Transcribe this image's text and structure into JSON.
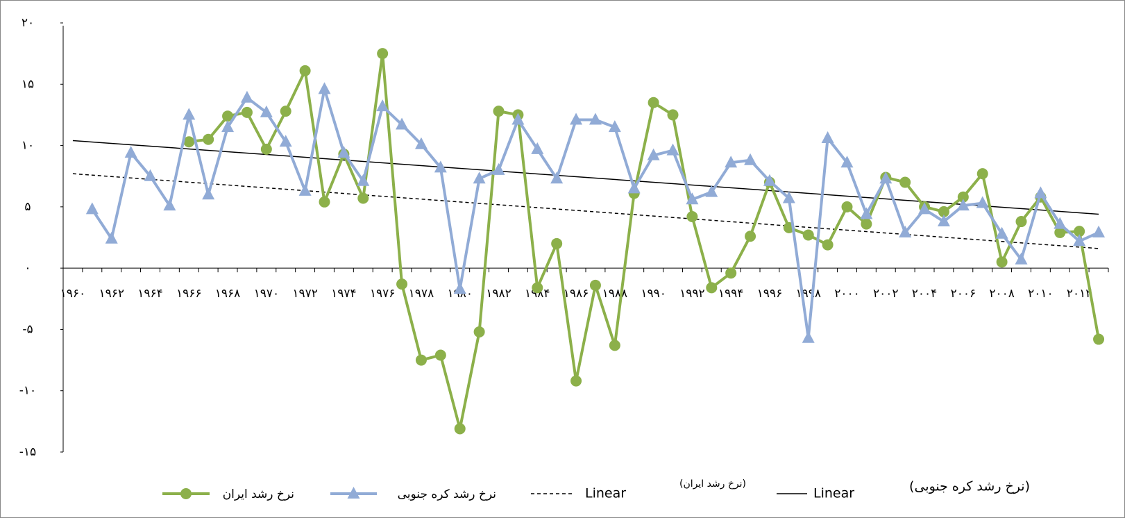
{
  "chart_data": {
    "type": "line",
    "categories": [
      "۱۹۶۰",
      null,
      "۱۹۶۲",
      null,
      "۱۹۶۴",
      null,
      "۱۹۶۶",
      null,
      "۱۹۶۸",
      null,
      "۱۹۷۰",
      null,
      "۱۹۷۲",
      null,
      "۱۹۷۴",
      null,
      "۱۹۷۶",
      null,
      "۱۹۷۸",
      null,
      "۱۹۸۰",
      null,
      "۱۹۸۲",
      null,
      "۱۹۸۴",
      null,
      "۱۹۸۶",
      null,
      "۱۹۸۸",
      null,
      "۱۹۹۰",
      null,
      "۱۹۹۲",
      null,
      "۱۹۹۴",
      null,
      "۱۹۹۶",
      null,
      "۱۹۹۸",
      null,
      "۲۰۰۰",
      null,
      "۲۰۰۲",
      null,
      "۲۰۰۴",
      null,
      "۲۰۰۶",
      null,
      "۲۰۰۸",
      null,
      "۲۰۱۰",
      null,
      "۲۰۱۲",
      null
    ],
    "series": [
      {
        "name": "نرخ رشد ایران",
        "color": "#8cb04a",
        "marker": "circle",
        "values": [
          null,
          null,
          null,
          null,
          null,
          null,
          10.3,
          10.5,
          12.4,
          12.7,
          9.7,
          12.8,
          16.1,
          5.4,
          9.3,
          5.7,
          17.5,
          -1.3,
          -7.5,
          -7.1,
          -13.1,
          -5.2,
          12.8,
          12.5,
          -1.6,
          2.0,
          -9.2,
          -1.4,
          -6.3,
          6.1,
          13.5,
          12.5,
          4.2,
          -1.6,
          -0.4,
          2.6,
          7.0,
          3.3,
          2.7,
          1.9,
          5.0,
          3.6,
          7.4,
          7.0,
          5.0,
          4.6,
          5.8,
          7.7,
          0.5,
          3.8,
          5.8,
          2.9,
          3.0,
          -5.8
        ]
      },
      {
        "name": "نرخ رشد کره جنوبی",
        "color": "#91abd6",
        "marker": "triangle",
        "values": [
          null,
          4.8,
          2.4,
          9.4,
          7.5,
          5.1,
          12.5,
          6.0,
          11.5,
          13.9,
          12.7,
          10.3,
          6.3,
          14.6,
          9.4,
          7.1,
          13.2,
          11.7,
          10.1,
          8.2,
          -1.7,
          7.3,
          8.0,
          12.1,
          9.7,
          7.3,
          12.1,
          12.1,
          11.5,
          6.5,
          9.2,
          9.6,
          5.6,
          6.2,
          8.6,
          8.8,
          7.1,
          5.7,
          -5.7,
          10.6,
          8.6,
          4.4,
          7.3,
          2.9,
          4.8,
          3.8,
          5.1,
          5.3,
          2.8,
          0.7,
          6.1,
          3.6,
          2.2,
          2.9
        ]
      }
    ],
    "trendlines": [
      {
        "name": "Linear",
        "note": "(نرخ رشد ایران)",
        "dash": true,
        "start": 7.7,
        "end": 1.6
      },
      {
        "name": "Linear",
        "note": "(نرخ رشد کره جنوبی)",
        "dash": false,
        "start": 10.4,
        "end": 4.4
      }
    ],
    "ylim": [
      -15,
      20
    ],
    "yticks": [
      {
        "value": 20,
        "label": "۲۰"
      },
      {
        "value": 15,
        "label": "۱۵"
      },
      {
        "value": 10,
        "label": "۱۰"
      },
      {
        "value": 5,
        "label": "۵"
      },
      {
        "value": 0,
        "label": "۰"
      },
      {
        "value": -5,
        "label": "-۵"
      },
      {
        "value": -10,
        "label": "-۱۰"
      },
      {
        "value": -15,
        "label": "-۱۵"
      }
    ],
    "grid": false
  }
}
